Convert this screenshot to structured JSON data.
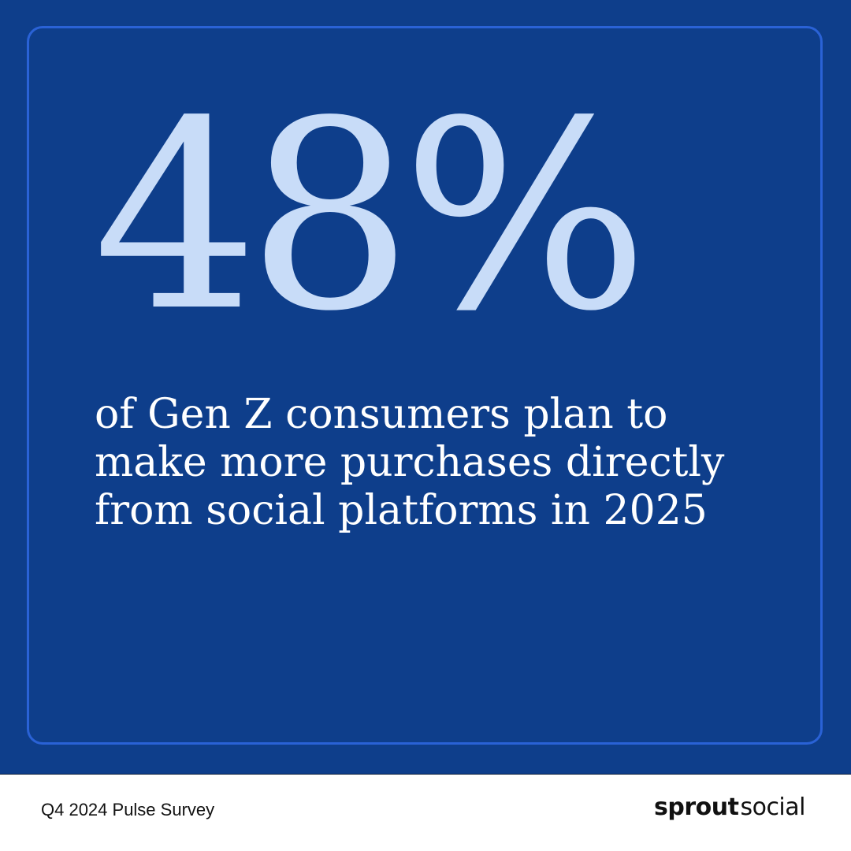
{
  "stat": {
    "value": "48%",
    "description": "of Gen Z consumers plan to make more purchases directly from social platforms in 2025"
  },
  "footer": {
    "caption": "Q4 2024 Pulse Survey",
    "logo": {
      "bold": "sprout",
      "regular": "social"
    }
  },
  "colors": {
    "background": "#0e3e8b",
    "frame_border": "#2a62d6",
    "stat": "#c8dcf8",
    "text": "#ffffff",
    "footer_background": "#ffffff"
  }
}
